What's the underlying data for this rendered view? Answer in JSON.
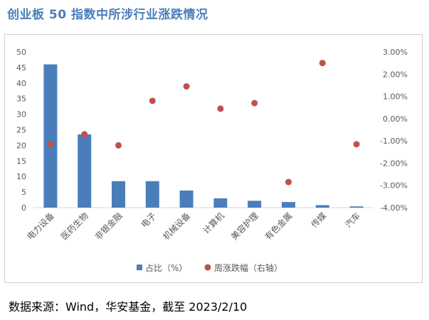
{
  "title": "创业板 50 指数中所涉行业涨跌情况",
  "source": "数据来源：Wind，华安基金，截至 2023/2/10",
  "colors": {
    "bar": "#4a7ebb",
    "dot": "#c0504d",
    "title": "#4a7ebb"
  },
  "chart_data": {
    "type": "bar",
    "title": "创业板 50 指数中所涉行业涨跌情况",
    "categories": [
      "电力设备",
      "医药生物",
      "非银金融",
      "电子",
      "机械设备",
      "计算机",
      "美容护理",
      "有色金属",
      "传媒",
      "汽车"
    ],
    "series": [
      {
        "name": "占比（%）",
        "type": "bar",
        "axis": "left",
        "values": [
          46.0,
          23.5,
          8.5,
          8.5,
          5.5,
          3.0,
          2.2,
          1.8,
          0.8,
          0.4
        ]
      },
      {
        "name": "周涨跌幅（右轴）",
        "type": "scatter",
        "axis": "right",
        "values": [
          -1.15,
          -0.7,
          -1.2,
          0.8,
          1.45,
          0.45,
          0.7,
          -2.85,
          2.5,
          -1.15
        ]
      }
    ],
    "y_left": {
      "min": 0,
      "max": 50,
      "step": 5,
      "ticks": [
        "0",
        "5",
        "10",
        "15",
        "20",
        "25",
        "30",
        "35",
        "40",
        "45",
        "50"
      ]
    },
    "y_right": {
      "min": -4,
      "max": 3,
      "step": 1,
      "ticks": [
        "-4.00%",
        "-3.00%",
        "-2.00%",
        "-1.00%",
        "0.00%",
        "1.00%",
        "2.00%",
        "3.00%"
      ]
    },
    "legend": [
      "占比（%）",
      "周涨跌幅（右轴）"
    ],
    "legend_position": "bottom",
    "grid": false
  }
}
